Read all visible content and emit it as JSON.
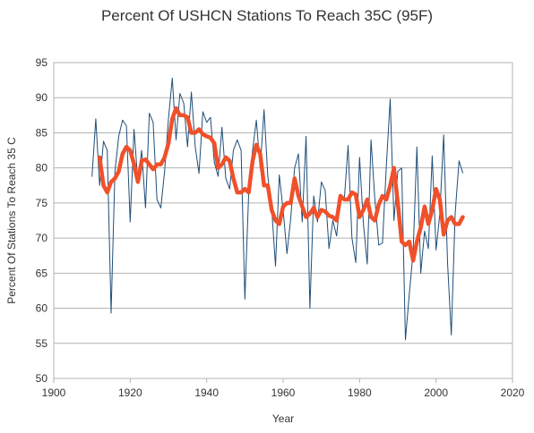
{
  "chart_data": {
    "type": "line",
    "title": "Percent Of USHCN Stations To Reach 35C (95F)",
    "xlabel": "Year",
    "ylabel": "Percent Of Stations To Reach 35 C",
    "xlim": [
      1900,
      2020
    ],
    "ylim": [
      50,
      95
    ],
    "xticks": [
      1900,
      1920,
      1940,
      1960,
      1980,
      2000,
      2020
    ],
    "yticks": [
      50,
      55,
      60,
      65,
      70,
      75,
      80,
      85,
      90,
      95
    ],
    "grid": "horizontal",
    "legend": "none",
    "series": [
      {
        "color": "#1f4e79",
        "style": "thin",
        "x": [
          1910,
          1911,
          1912,
          1913,
          1914,
          1915,
          1916,
          1917,
          1918,
          1919,
          1920,
          1921,
          1922,
          1923,
          1924,
          1925,
          1926,
          1927,
          1928,
          1929,
          1930,
          1931,
          1932,
          1933,
          1934,
          1935,
          1936,
          1937,
          1938,
          1939,
          1940,
          1941,
          1942,
          1943,
          1944,
          1945,
          1946,
          1947,
          1948,
          1949,
          1950,
          1951,
          1952,
          1953,
          1954,
          1955,
          1956,
          1957,
          1958,
          1959,
          1960,
          1961,
          1962,
          1963,
          1964,
          1965,
          1966,
          1967,
          1968,
          1969,
          1970,
          1971,
          1972,
          1973,
          1974,
          1975,
          1976,
          1977,
          1978,
          1979,
          1980,
          1981,
          1982,
          1983,
          1984,
          1985,
          1986,
          1987,
          1988,
          1989,
          1990,
          1991,
          1992,
          1993,
          1994,
          1995,
          1996,
          1997,
          1998,
          1999,
          2000,
          2001,
          2002,
          2003,
          2004,
          2005,
          2006,
          2007
        ],
        "y": [
          78.8,
          87.0,
          77.5,
          83.8,
          82.5,
          59.3,
          79.5,
          84.5,
          86.8,
          86.0,
          72.3,
          85.5,
          78.0,
          82.5,
          74.3,
          87.8,
          86.5,
          75.5,
          74.3,
          79.5,
          87.0,
          92.8,
          84.0,
          90.6,
          89.2,
          83.0,
          90.8,
          83.0,
          79.2,
          88.0,
          86.5,
          87.2,
          80.8,
          78.8,
          85.8,
          78.5,
          77.0,
          82.5,
          84.0,
          82.5,
          61.3,
          76.5,
          82.5,
          86.8,
          80.0,
          88.3,
          78.8,
          74.3,
          66.0,
          79.0,
          74.0,
          67.8,
          72.8,
          80.0,
          82.0,
          72.3,
          84.5,
          60.0,
          76.0,
          72.3,
          78.0,
          76.8,
          68.5,
          72.5,
          70.3,
          76.0,
          75.5,
          83.2,
          70.0,
          66.5,
          81.5,
          72.0,
          66.3,
          84.0,
          75.5,
          69.0,
          69.3,
          80.3,
          89.8,
          72.5,
          79.5,
          80.0,
          55.5,
          62.0,
          68.0,
          83.0,
          65.0,
          71.0,
          68.5,
          81.7,
          68.3,
          73.5,
          84.7,
          66.5,
          56.2,
          73.5,
          81.0,
          79.3
        ]
      },
      {
        "color": "#f0502a",
        "style": "thick",
        "x": [
          1912,
          1913,
          1914,
          1915,
          1916,
          1917,
          1918,
          1919,
          1920,
          1921,
          1922,
          1923,
          1924,
          1925,
          1926,
          1927,
          1928,
          1929,
          1930,
          1931,
          1932,
          1933,
          1934,
          1935,
          1936,
          1937,
          1938,
          1939,
          1940,
          1941,
          1942,
          1943,
          1944,
          1945,
          1946,
          1947,
          1948,
          1949,
          1950,
          1951,
          1952,
          1953,
          1954,
          1955,
          1956,
          1957,
          1958,
          1959,
          1960,
          1961,
          1962,
          1963,
          1964,
          1965,
          1966,
          1967,
          1968,
          1969,
          1970,
          1971,
          1972,
          1973,
          1974,
          1975,
          1976,
          1977,
          1978,
          1979,
          1980,
          1981,
          1982,
          1983,
          1984,
          1985,
          1986,
          1987,
          1988,
          1989,
          1990,
          1991,
          1992,
          1993,
          1994,
          1995,
          1996,
          1997,
          1998,
          1999,
          2000,
          2001,
          2002,
          2003,
          2004,
          2005,
          2006,
          2007
        ],
        "y": [
          81.5,
          77.5,
          76.5,
          78.0,
          78.5,
          79.5,
          82.0,
          83.0,
          82.5,
          80.5,
          78.0,
          81.0,
          81.2,
          80.5,
          79.8,
          80.5,
          80.5,
          81.5,
          83.5,
          87.0,
          88.5,
          87.5,
          87.5,
          87.2,
          85.0,
          85.0,
          85.5,
          84.8,
          84.5,
          84.3,
          83.5,
          80.0,
          80.5,
          81.5,
          81.0,
          78.5,
          76.5,
          76.5,
          77.0,
          76.5,
          81.0,
          83.3,
          82.0,
          77.5,
          77.5,
          74.0,
          72.5,
          72.0,
          74.5,
          75.0,
          75.0,
          78.5,
          76.0,
          74.5,
          73.0,
          73.5,
          74.3,
          73.0,
          74.0,
          73.8,
          73.2,
          73.0,
          72.5,
          76.0,
          75.5,
          75.5,
          76.5,
          76.2,
          73.0,
          74.0,
          75.5,
          73.0,
          72.5,
          74.8,
          76.0,
          75.5,
          77.5,
          80.0,
          75.0,
          69.5,
          69.0,
          69.5,
          66.8,
          69.5,
          71.5,
          74.5,
          72.0,
          74.0,
          77.0,
          75.5,
          70.5,
          72.5,
          73.0,
          72.0,
          72.0,
          73.0
        ]
      }
    ]
  }
}
